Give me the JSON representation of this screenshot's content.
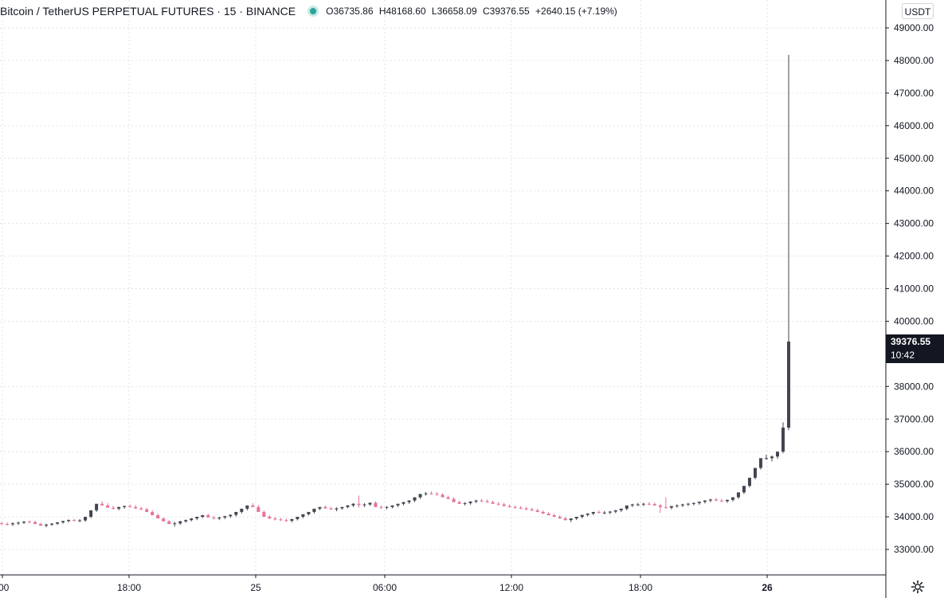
{
  "header": {
    "symbol": "Bitcoin / TetherUS PERPETUAL FUTURES · 15 · BINANCE",
    "open": "O36735.86",
    "high": "H48168.60",
    "low": "L36658.09",
    "close": "C39376.55",
    "change": "+2640.15 (+7.19%)"
  },
  "currency_label": "USDT",
  "last_price": {
    "value": "39376.55",
    "countdown": "10:42"
  },
  "colors": {
    "up": "#26a69a",
    "down": "#ef5350",
    "candle_up": "#434651",
    "candle_down": "#e57399",
    "grid": "#e0e3eb",
    "tag_bg": "#131722"
  },
  "icons": {
    "settings": "gear-icon",
    "status": "status-dot"
  },
  "chart_data": {
    "type": "candlestick",
    "ylim": [
      32400,
      49400
    ],
    "y_ticks": [
      {
        "value": 49000,
        "label": "49000.00"
      },
      {
        "value": 48000,
        "label": "48000.00"
      },
      {
        "value": 47000,
        "label": "47000.00"
      },
      {
        "value": 46000,
        "label": "46000.00"
      },
      {
        "value": 45000,
        "label": "45000.00"
      },
      {
        "value": 44000,
        "label": "44000.00"
      },
      {
        "value": 43000,
        "label": "43000.00"
      },
      {
        "value": 42000,
        "label": "42000.00"
      },
      {
        "value": 41000,
        "label": "41000.00"
      },
      {
        "value": 40000,
        "label": "40000.00"
      },
      {
        "value": 38000,
        "label": "38000.00"
      },
      {
        "value": 37000,
        "label": "37000.00"
      },
      {
        "value": 36000,
        "label": "36000.00"
      },
      {
        "value": 35000,
        "label": "35000.00"
      },
      {
        "value": 34000,
        "label": "34000.00"
      },
      {
        "value": 33000,
        "label": "33000.00"
      }
    ],
    "x_ticks": [
      {
        "label": ":00",
        "bold": false
      },
      {
        "label": "18:00",
        "bold": false
      },
      {
        "label": "25",
        "bold": false
      },
      {
        "label": "06:00",
        "bold": false
      },
      {
        "label": "12:00",
        "bold": false
      },
      {
        "label": "18:00",
        "bold": false
      },
      {
        "label": "26",
        "bold": true
      }
    ],
    "grid": true,
    "candles": {
      "open": [
        33800,
        33780,
        33770,
        33800,
        33820,
        33850,
        33840,
        33780,
        33730,
        33760,
        33790,
        33830,
        33870,
        33900,
        33880,
        33890,
        34000,
        34200,
        34400,
        34350,
        34280,
        34250,
        34300,
        34330,
        34300,
        34260,
        34230,
        34150,
        34050,
        33950,
        33860,
        33780,
        33800,
        33860,
        33900,
        33950,
        34000,
        34050,
        33980,
        33950,
        33980,
        34020,
        34060,
        34150,
        34250,
        34350,
        34300,
        34150,
        34000,
        33950,
        33920,
        33900,
        33880,
        33930,
        34000,
        34080,
        34150,
        34250,
        34300,
        34260,
        34230,
        34260,
        34300,
        34350,
        34400,
        34360,
        34380,
        34430,
        34300,
        34280,
        34300,
        34350,
        34400,
        34450,
        34500,
        34600,
        34700,
        34720,
        34700,
        34680,
        34600,
        34550,
        34450,
        34400,
        34420,
        34470,
        34500,
        34480,
        34450,
        34400,
        34380,
        34330,
        34300,
        34280,
        34260,
        34230,
        34200,
        34150,
        34100,
        34050,
        34000,
        33950,
        33900,
        33950,
        34000,
        34060,
        34100,
        34150,
        34130,
        34130,
        34160,
        34200,
        34250,
        34350,
        34380,
        34380,
        34400,
        34390,
        34350,
        34300,
        34280,
        34330,
        34350,
        34380,
        34400,
        34420,
        34460,
        34500,
        34530,
        34500,
        34480,
        34520,
        34600,
        34750,
        34950,
        35200,
        35500,
        35800,
        35800,
        35850,
        36000,
        36735.86
      ],
      "high": [
        33850,
        33830,
        33830,
        33860,
        33870,
        33890,
        33880,
        33820,
        33790,
        33810,
        33840,
        33880,
        33920,
        33940,
        33930,
        33940,
        34100,
        34300,
        34480,
        34420,
        34340,
        34310,
        34350,
        34380,
        34360,
        34310,
        34280,
        34200,
        34100,
        33980,
        33900,
        33850,
        33880,
        33920,
        33960,
        34000,
        34060,
        34100,
        34030,
        34000,
        34030,
        34080,
        34120,
        34220,
        34320,
        34420,
        34360,
        34200,
        34060,
        34000,
        33970,
        33950,
        33940,
        33990,
        34060,
        34140,
        34210,
        34300,
        34350,
        34310,
        34290,
        34310,
        34360,
        34420,
        34650,
        34420,
        34440,
        34480,
        34350,
        34330,
        34350,
        34400,
        34460,
        34510,
        34560,
        34670,
        34760,
        34780,
        34760,
        34730,
        34650,
        34600,
        34500,
        34450,
        34470,
        34520,
        34550,
        34530,
        34500,
        34450,
        34430,
        34380,
        34350,
        34330,
        34310,
        34280,
        34250,
        34200,
        34150,
        34100,
        34050,
        34000,
        33950,
        34000,
        34050,
        34110,
        34150,
        34200,
        34180,
        34180,
        34210,
        34250,
        34300,
        34400,
        34430,
        34430,
        34450,
        34440,
        34400,
        34600,
        34330,
        34380,
        34400,
        34430,
        34450,
        34470,
        34510,
        34550,
        34580,
        34550,
        34530,
        34580,
        34680,
        34850,
        35050,
        35350,
        35650,
        35900,
        35880,
        35950,
        36900,
        48168.6
      ],
      "low": [
        33750,
        33730,
        33720,
        33750,
        33780,
        33800,
        33790,
        33720,
        33680,
        33720,
        33750,
        33790,
        33830,
        33860,
        33840,
        33850,
        33960,
        34150,
        34350,
        34300,
        34220,
        34200,
        34250,
        34280,
        34240,
        34200,
        34170,
        34090,
        33980,
        33880,
        33780,
        33700,
        33750,
        33820,
        33860,
        33900,
        33960,
        34000,
        33920,
        33900,
        33930,
        33970,
        34010,
        34100,
        34200,
        34300,
        34240,
        34090,
        33930,
        33890,
        33870,
        33840,
        33830,
        33890,
        33960,
        34040,
        34100,
        34200,
        34250,
        34210,
        34170,
        34220,
        34260,
        34300,
        34280,
        34300,
        34340,
        34380,
        34240,
        34230,
        34260,
        34300,
        34350,
        34400,
        34450,
        34550,
        34650,
        34680,
        34650,
        34620,
        34540,
        34500,
        34390,
        34350,
        34370,
        34420,
        34450,
        34430,
        34400,
        34340,
        34320,
        34280,
        34250,
        34230,
        34200,
        34170,
        34140,
        34090,
        34040,
        33990,
        33940,
        33880,
        33840,
        33900,
        33950,
        34010,
        34050,
        34100,
        34080,
        34080,
        34110,
        34150,
        34200,
        34300,
        34330,
        34330,
        34350,
        34340,
        34120,
        34250,
        34230,
        34280,
        34300,
        34330,
        34350,
        34370,
        34410,
        34450,
        34480,
        34450,
        34430,
        34470,
        34550,
        34700,
        34900,
        35150,
        35450,
        35750,
        35700,
        35780,
        35950,
        36658.09
      ],
      "close": [
        33780,
        33770,
        33800,
        33820,
        33850,
        33840,
        33780,
        33730,
        33760,
        33790,
        33830,
        33870,
        33900,
        33880,
        33890,
        34000,
        34200,
        34400,
        34350,
        34280,
        34250,
        34300,
        34330,
        34300,
        34260,
        34230,
        34150,
        34050,
        33950,
        33860,
        33780,
        33800,
        33860,
        33900,
        33950,
        34000,
        34050,
        33980,
        33950,
        33980,
        34020,
        34060,
        34150,
        34250,
        34350,
        34300,
        34150,
        34000,
        33950,
        33920,
        33900,
        33880,
        33930,
        34000,
        34080,
        34150,
        34250,
        34300,
        34260,
        34230,
        34260,
        34300,
        34350,
        34400,
        34360,
        34380,
        34430,
        34300,
        34280,
        34300,
        34350,
        34400,
        34450,
        34500,
        34600,
        34700,
        34720,
        34700,
        34680,
        34600,
        34550,
        34450,
        34400,
        34420,
        34470,
        34500,
        34480,
        34450,
        34400,
        34380,
        34330,
        34300,
        34280,
        34260,
        34230,
        34200,
        34150,
        34100,
        34050,
        34000,
        33950,
        33900,
        33950,
        34000,
        34060,
        34100,
        34150,
        34130,
        34130,
        34160,
        34200,
        34250,
        34350,
        34380,
        34380,
        34400,
        34390,
        34350,
        34300,
        34280,
        34330,
        34350,
        34380,
        34400,
        34420,
        34460,
        34500,
        34530,
        34500,
        34480,
        34520,
        34600,
        34750,
        34950,
        35200,
        35500,
        35800,
        35800,
        35850,
        36000,
        36735.86,
        39376.55
      ]
    }
  }
}
